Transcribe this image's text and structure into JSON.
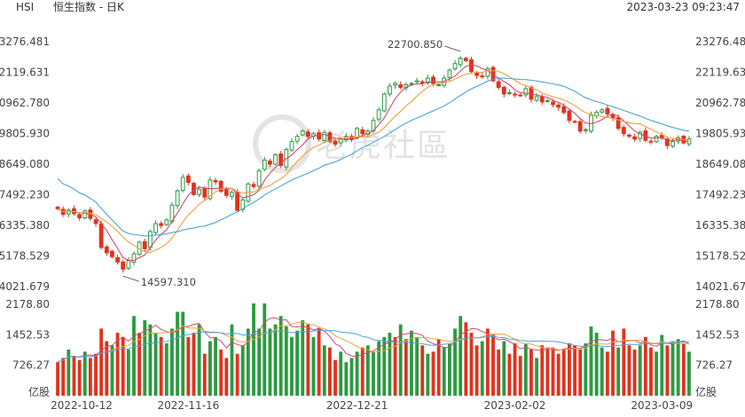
{
  "header": {
    "symbol": "HSI",
    "name": "恒生指数 - 日K",
    "timestamp": "2023-03-23 09:23:47"
  },
  "watermark": "老虎社區",
  "colors": {
    "up": "#2a9a3f",
    "down": "#e0321d",
    "ma_fast": "#d24a6e",
    "ma_mid": "#f0a040",
    "ma_slow": "#4ba3d9"
  },
  "chart_data": {
    "type": "candlestick",
    "price_axis": {
      "ticks": [
        "23276.481",
        "22119.631",
        "20962.780",
        "19805.930",
        "18649.080",
        "17492.230",
        "16335.380",
        "15178.529",
        "14021.679"
      ],
      "range": [
        14021.679,
        23276.481
      ]
    },
    "volume_axis": {
      "ticks": [
        "2178.80",
        "1452.53",
        "726.27"
      ],
      "unit": "亿股",
      "range": [
        0,
        2178.8
      ]
    },
    "x_ticks": [
      "2022-10-12",
      "2022-11-16",
      "2022-12-21",
      "2023-02-02",
      "2023-03-09"
    ],
    "annotations": {
      "high": "22700.850",
      "low": "14597.310"
    },
    "closes": [
      16960,
      16750,
      16910,
      16780,
      16620,
      16880,
      16600,
      16410,
      15500,
      15300,
      15150,
      14950,
      14680,
      15000,
      15260,
      15700,
      15450,
      16100,
      16400,
      16330,
      16540,
      17100,
      17640,
      18150,
      17960,
      17500,
      17700,
      17400,
      18050,
      17980,
      17620,
      17470,
      17580,
      16900,
      17300,
      17900,
      17800,
      18400,
      18800,
      18650,
      19000,
      18600,
      19200,
      19500,
      19700,
      19900,
      19700,
      19800,
      19600,
      19850,
      19500,
      19400,
      19600,
      19700,
      19600,
      20000,
      19800,
      19900,
      20300,
      20700,
      21300,
      21600,
      21700,
      21550,
      21650,
      21700,
      21800,
      21720,
      21900,
      21700,
      21650,
      21900,
      22200,
      22450,
      22650,
      22560,
      22150,
      22000,
      21950,
      22250,
      21800,
      21550,
      21300,
      21350,
      21280,
      21250,
      21500,
      21100,
      21200,
      21000,
      21050,
      20900,
      20800,
      20600,
      20300,
      20250,
      19900,
      19950,
      20500,
      20600,
      20700,
      20550,
      20400,
      20000,
      19800,
      19700,
      19600,
      19850,
      19550,
      19500,
      19700,
      19650,
      19350,
      19500,
      19650,
      19450,
      19600
    ],
    "volumes": [
      800,
      900,
      1100,
      950,
      850,
      1050,
      900,
      1000,
      1600,
      1300,
      1200,
      1500,
      1400,
      1100,
      1900,
      1500,
      1800,
      1700,
      1500,
      1400,
      1250,
      1600,
      2000,
      2000,
      1400,
      1500,
      1700,
      1000,
      1300,
      1400,
      1100,
      900,
      1700,
      1000,
      1200,
      1600,
      2200,
      1600,
      2200,
      1600,
      1700,
      1900,
      1650,
      1400,
      1550,
      1800,
      1700,
      1400,
      1600,
      1200,
      1150,
      850,
      1050,
      800,
      900,
      1050,
      1150,
      1200,
      1050,
      1300,
      1400,
      1500,
      1400,
      1700,
      1350,
      1550,
      1400,
      1200,
      1000,
      1050,
      1350,
      1150,
      1250,
      1600,
      1900,
      1750,
      1500,
      1200,
      1300,
      1600,
      1450,
      1100,
      1300,
      1000,
      1250,
      950,
      1250,
      1100,
      900,
      1200,
      1150,
      1150,
      1000,
      1100,
      1250,
      1200,
      1100,
      1250,
      1650,
      1500,
      1150,
      1050,
      1550,
      1150,
      1600,
      1200,
      1100,
      1200,
      1400,
      1150,
      1050,
      1450,
      1200,
      1300,
      1350,
      1250,
      1050
    ],
    "volume_dir": [
      -1,
      -1,
      1,
      -1,
      -1,
      1,
      -1,
      -1,
      -1,
      -1,
      1,
      -1,
      -1,
      1,
      1,
      -1,
      1,
      1,
      1,
      -1,
      1,
      1,
      1,
      1,
      -1,
      -1,
      1,
      -1,
      1,
      1,
      -1,
      -1,
      1,
      -1,
      1,
      1,
      1,
      1,
      1,
      1,
      1,
      1,
      1,
      1,
      1,
      1,
      -1,
      1,
      -1,
      1,
      -1,
      -1,
      1,
      1,
      1,
      1,
      -1,
      1,
      1,
      1,
      1,
      1,
      -1,
      1,
      -1,
      1,
      1,
      -1,
      1,
      -1,
      -1,
      1,
      1,
      1,
      1,
      -1,
      -1,
      -1,
      1,
      -1,
      -1,
      -1,
      1,
      -1,
      -1,
      -1,
      1,
      -1,
      1,
      -1,
      -1,
      -1,
      -1,
      -1,
      -1,
      -1,
      -1,
      1,
      1,
      1,
      1,
      -1,
      -1,
      1,
      -1,
      -1,
      -1,
      1,
      -1,
      -1,
      1,
      1,
      -1,
      1,
      1,
      -1,
      1
    ]
  }
}
